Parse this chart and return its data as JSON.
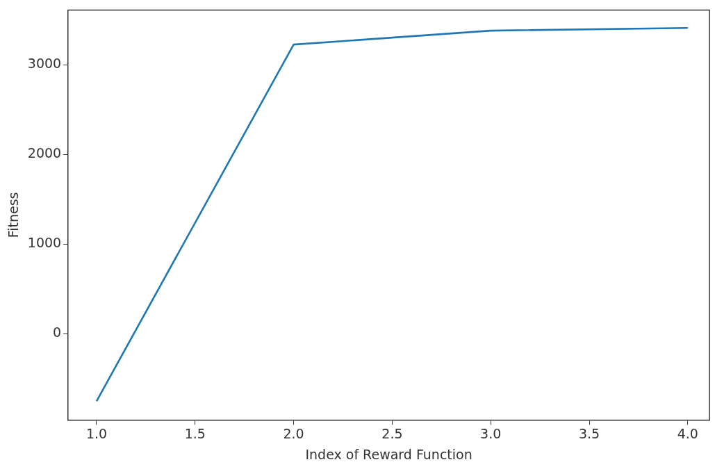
{
  "chart_data": {
    "type": "line",
    "xlabel": "Index of Reward Function",
    "ylabel": "Fitness",
    "x": [
      1,
      2,
      3,
      4
    ],
    "series": [
      {
        "color": "#1f77b4",
        "values": [
          -750,
          3225,
          3380,
          3410
        ]
      }
    ],
    "xlim": [
      0.856,
      4.11
    ],
    "xticks": [
      {
        "value": 1,
        "label": "1.0"
      },
      {
        "value": 1.5,
        "label": "1.5"
      },
      {
        "value": 2,
        "label": "2.0"
      },
      {
        "value": 2.5,
        "label": "2.5"
      },
      {
        "value": 3,
        "label": "3.0"
      },
      {
        "value": 3.5,
        "label": "3.5"
      },
      {
        "value": 4,
        "label": "4.0"
      }
    ],
    "ylim": [
      -960,
      3610
    ],
    "yticks": [
      0,
      1000,
      2000,
      3000
    ],
    "grid": false,
    "legend": false,
    "marker": "none",
    "line_style": "solid"
  }
}
